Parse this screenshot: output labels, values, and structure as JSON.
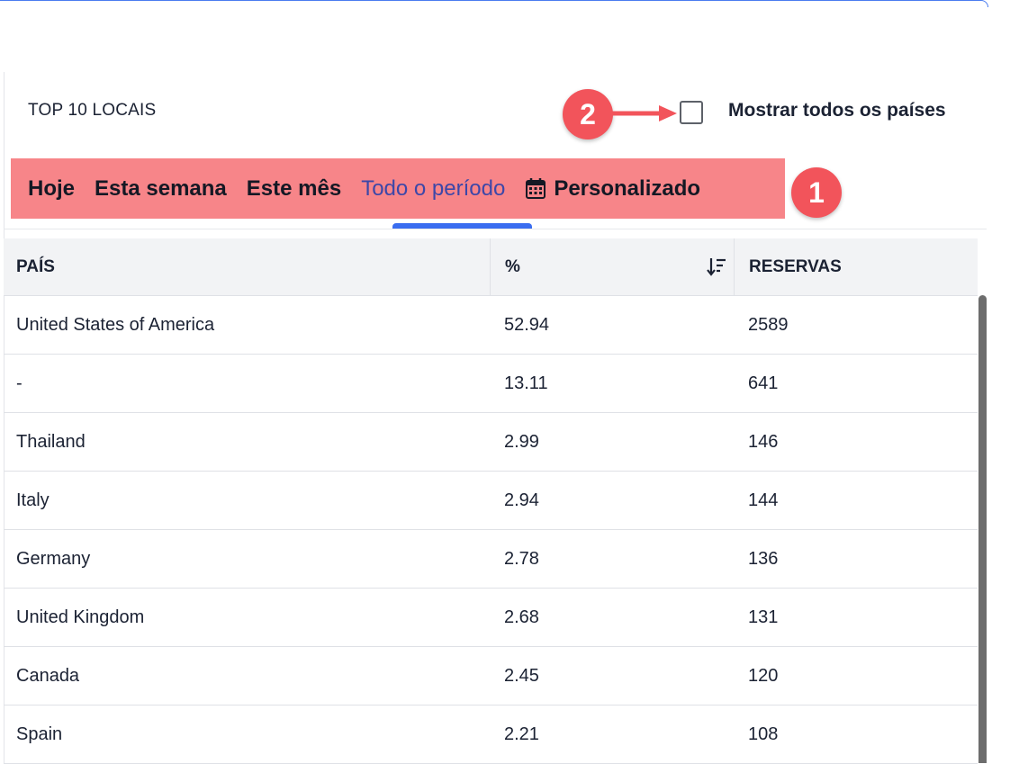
{
  "card": {
    "title": "TOP 10 LOCAIS",
    "show_all_label": "Mostrar todos os países",
    "show_all_checked": false
  },
  "annotations": {
    "marker_1": "1",
    "marker_2": "2",
    "marker_color": "#f2545b",
    "highlight_color": "#f78589"
  },
  "tabs": [
    {
      "label": "Hoje",
      "active": false
    },
    {
      "label": "Esta semana",
      "active": false
    },
    {
      "label": "Este mês",
      "active": false
    },
    {
      "label": "Todo o período",
      "active": true
    },
    {
      "label": "Personalizado",
      "active": false,
      "icon": "calendar-icon"
    }
  ],
  "accent_color": "#3a6df0",
  "table": {
    "headers": {
      "country": "PAÍS",
      "percent": "%",
      "bookings": "RESERVAS"
    },
    "sort_icon": "sort-descending-icon",
    "rows": [
      {
        "country": "United States of America",
        "percent": "52.94",
        "bookings": "2589"
      },
      {
        "country": "-",
        "percent": "13.11",
        "bookings": "641"
      },
      {
        "country": "Thailand",
        "percent": "2.99",
        "bookings": "146"
      },
      {
        "country": "Italy",
        "percent": "2.94",
        "bookings": "144"
      },
      {
        "country": "Germany",
        "percent": "2.78",
        "bookings": "136"
      },
      {
        "country": "United Kingdom",
        "percent": "2.68",
        "bookings": "131"
      },
      {
        "country": "Canada",
        "percent": "2.45",
        "bookings": "120"
      },
      {
        "country": "Spain",
        "percent": "2.21",
        "bookings": "108"
      }
    ]
  }
}
